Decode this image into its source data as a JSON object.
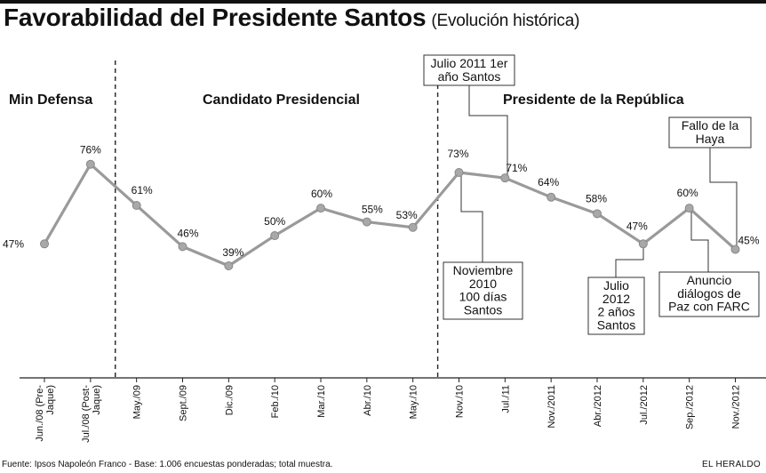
{
  "header": {
    "title": "Favorabilidad del Presidente Santos",
    "subtitle": "(Evolución histórica)"
  },
  "footer": {
    "source": "Fuente: Ipsos Napoleón Franco - Base: 1.006 encuestas ponderadas; total muestra.",
    "brand": "EL HERALDO"
  },
  "chart_data": {
    "type": "line",
    "title": "Favorabilidad del Presidente Santos",
    "subtitle": "(Evolución histórica)",
    "categories": [
      "Jun./08 (Pre-Jaque)",
      "Jul./08 (Post-Jaque)",
      "May./09",
      "Sept./09",
      "Dic./09",
      "Feb./10",
      "Mar./10",
      "Abr./10",
      "May./10",
      "Nov./10",
      "Jul./11",
      "Nov./2011",
      "Abr./2012",
      "Jul./2012",
      "Sep./2012",
      "Nov./2012"
    ],
    "tick_lines": [
      [
        "Jun./08 (Pre-",
        "Jaque)"
      ],
      [
        "Jul./08 (Post-",
        "Jaque)"
      ],
      [
        "May./09"
      ],
      [
        "Sept./09"
      ],
      [
        "Dic./09"
      ],
      [
        "Feb./10"
      ],
      [
        "Mar./10"
      ],
      [
        "Abr./10"
      ],
      [
        "May./10"
      ],
      [
        "Nov./10"
      ],
      [
        "Jul./11"
      ],
      [
        "Nov./2011"
      ],
      [
        "Abr./2012"
      ],
      [
        "Jul./2012"
      ],
      [
        "Sep./2012"
      ],
      [
        "Nov./2012"
      ]
    ],
    "values": [
      47,
      76,
      61,
      46,
      39,
      50,
      60,
      55,
      53,
      73,
      71,
      64,
      58,
      47,
      60,
      45
    ],
    "data_labels": [
      "47%",
      "76%",
      "61%",
      "46%",
      "39%",
      "50%",
      "60%",
      "55%",
      "53%",
      "73%",
      "71%",
      "64%",
      "58%",
      "47%",
      "60%",
      "45%"
    ],
    "unit": "%",
    "grid": false,
    "legend": "none",
    "line_color": "#9a9a9a",
    "marker_color": "#a8a8a8",
    "eras": [
      {
        "label": "Min Defensa",
        "from": 0,
        "to": 1
      },
      {
        "label": "Candidato Presidencial",
        "from": 2,
        "to": 8
      },
      {
        "label": "Presidente de la República",
        "from": 9,
        "to": 15
      }
    ],
    "dividers_after": [
      1,
      8
    ],
    "annotations": [
      {
        "lines": [
          "Julio 2011 1er",
          "año Santos"
        ],
        "point": 10
      },
      {
        "lines": [
          "Fallo de la",
          "Haya"
        ],
        "point": 15
      },
      {
        "lines": [
          "Noviembre",
          "2010",
          "100 días",
          "Santos"
        ],
        "point": 9
      },
      {
        "lines": [
          "Julio",
          "2012",
          "2 años",
          "Santos"
        ],
        "point": 13
      },
      {
        "lines": [
          "Anuncio",
          "diálogos de",
          "Paz con FARC"
        ],
        "point": 14
      }
    ]
  }
}
